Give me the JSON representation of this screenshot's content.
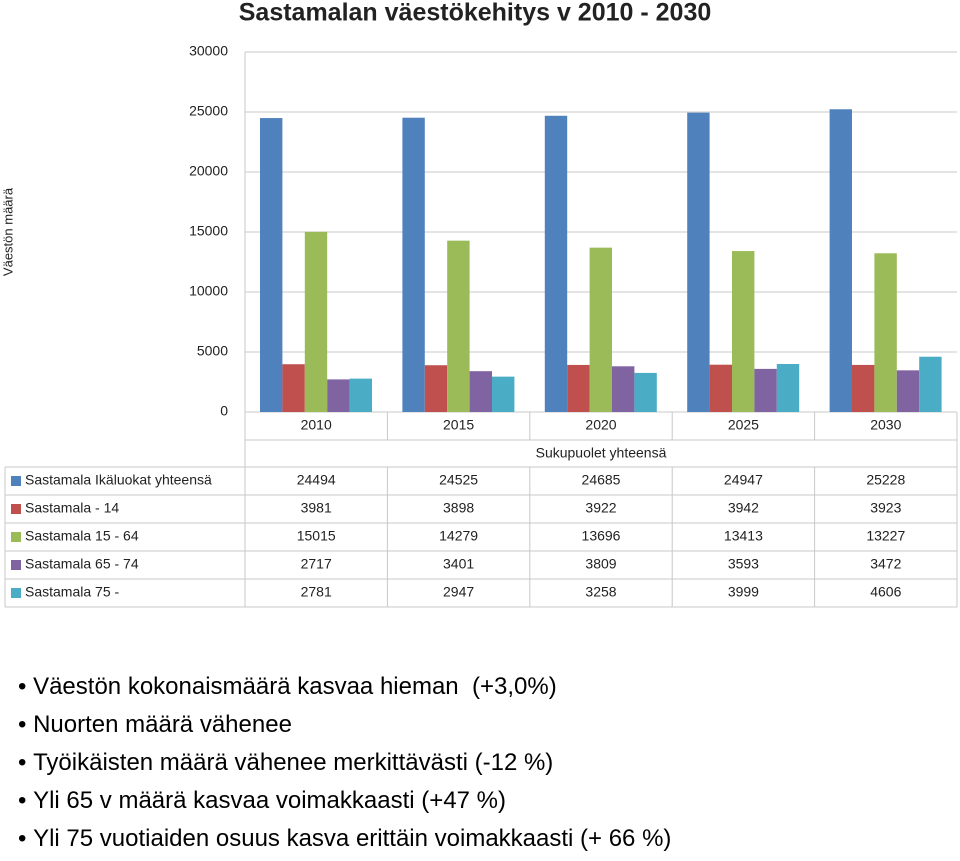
{
  "chart_data": {
    "type": "bar",
    "title": "Sastamalan väestökehitys v 2010 - 2030",
    "y_label": "Väestön määrä",
    "x_group_label": "Sukupuolet yhteensä",
    "categories": [
      "2010",
      "2015",
      "2020",
      "2025",
      "2030"
    ],
    "series": [
      {
        "name": "Sastamala Ikäluokat yhteensä",
        "color": "#4f81bd",
        "values": [
          24494,
          24525,
          24685,
          24947,
          25228
        ]
      },
      {
        "name": "Sastamala - 14",
        "color": "#c0504d",
        "values": [
          3981,
          3898,
          3922,
          3942,
          3923
        ]
      },
      {
        "name": "Sastamala 15 - 64",
        "color": "#9bbb59",
        "values": [
          15015,
          14279,
          13696,
          13413,
          13227
        ]
      },
      {
        "name": "Sastamala 65 - 74",
        "color": "#8064a2",
        "values": [
          2717,
          3401,
          3809,
          3593,
          3472
        ]
      },
      {
        "name": "Sastamala 75 -",
        "color": "#4bacc6",
        "values": [
          2781,
          2947,
          3258,
          3999,
          4606
        ]
      }
    ],
    "ylim": [
      0,
      30000
    ],
    "yticks": [
      0,
      5000,
      10000,
      15000,
      20000,
      25000,
      30000
    ],
    "grid": true
  },
  "bullets": [
    "Väestön kokonaismäärä kasvaa hieman  (+3,0%)",
    "Nuorten määrä vähenee",
    "Työikäisten määrä vähenee merkittävästi (-12 %)",
    "Yli 65 v määrä kasvaa voimakkaasti (+47 %)",
    "Yli 75 vuotiaiden osuus kasva erittäin voimakkaasti (+ 66 %)"
  ]
}
